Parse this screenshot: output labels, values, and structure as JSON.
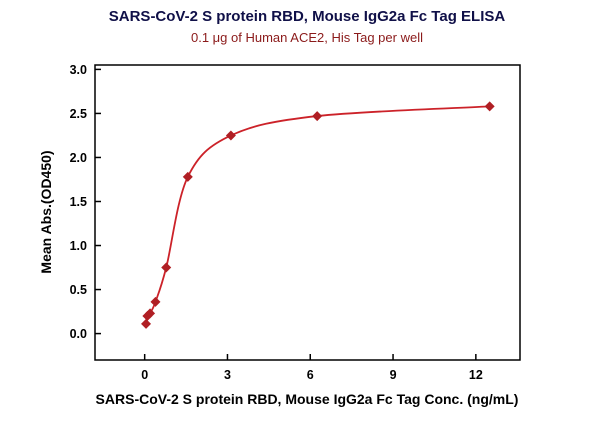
{
  "chart_data": {
    "type": "scatter",
    "curve_fit": "4PL sigmoidal fit line through points",
    "title": "SARS-CoV-2 S protein RBD, Mouse IgG2a Fc Tag ELISA",
    "subtitle": "0.1 μg of Human ACE2, His Tag per well",
    "xlabel": "SARS-CoV-2 S protein RBD, Mouse IgG2a Fc Tag Conc. (ng/mL)",
    "ylabel": "Mean Abs.(OD450)",
    "x": [
      0.049,
      0.098,
      0.195,
      0.391,
      0.781,
      1.563,
      3.125,
      6.25,
      12.5
    ],
    "y": [
      0.11,
      0.2,
      0.23,
      0.36,
      0.75,
      1.78,
      2.25,
      2.47,
      2.58
    ],
    "x_ticks": [
      0,
      3,
      6,
      9,
      12
    ],
    "y_ticks": [
      0,
      0.5,
      1,
      1.5,
      2,
      2.5,
      3
    ],
    "xlim": [
      -1.8,
      13.6
    ],
    "ylim": [
      -0.3,
      3.05
    ],
    "grid": false,
    "legend": "none",
    "marker": "diamond",
    "colors": {
      "line": "#cc2229",
      "marker": "#b01f24",
      "axis": "#000000",
      "title": "#101048",
      "subtitle": "#8b1a1a"
    }
  }
}
